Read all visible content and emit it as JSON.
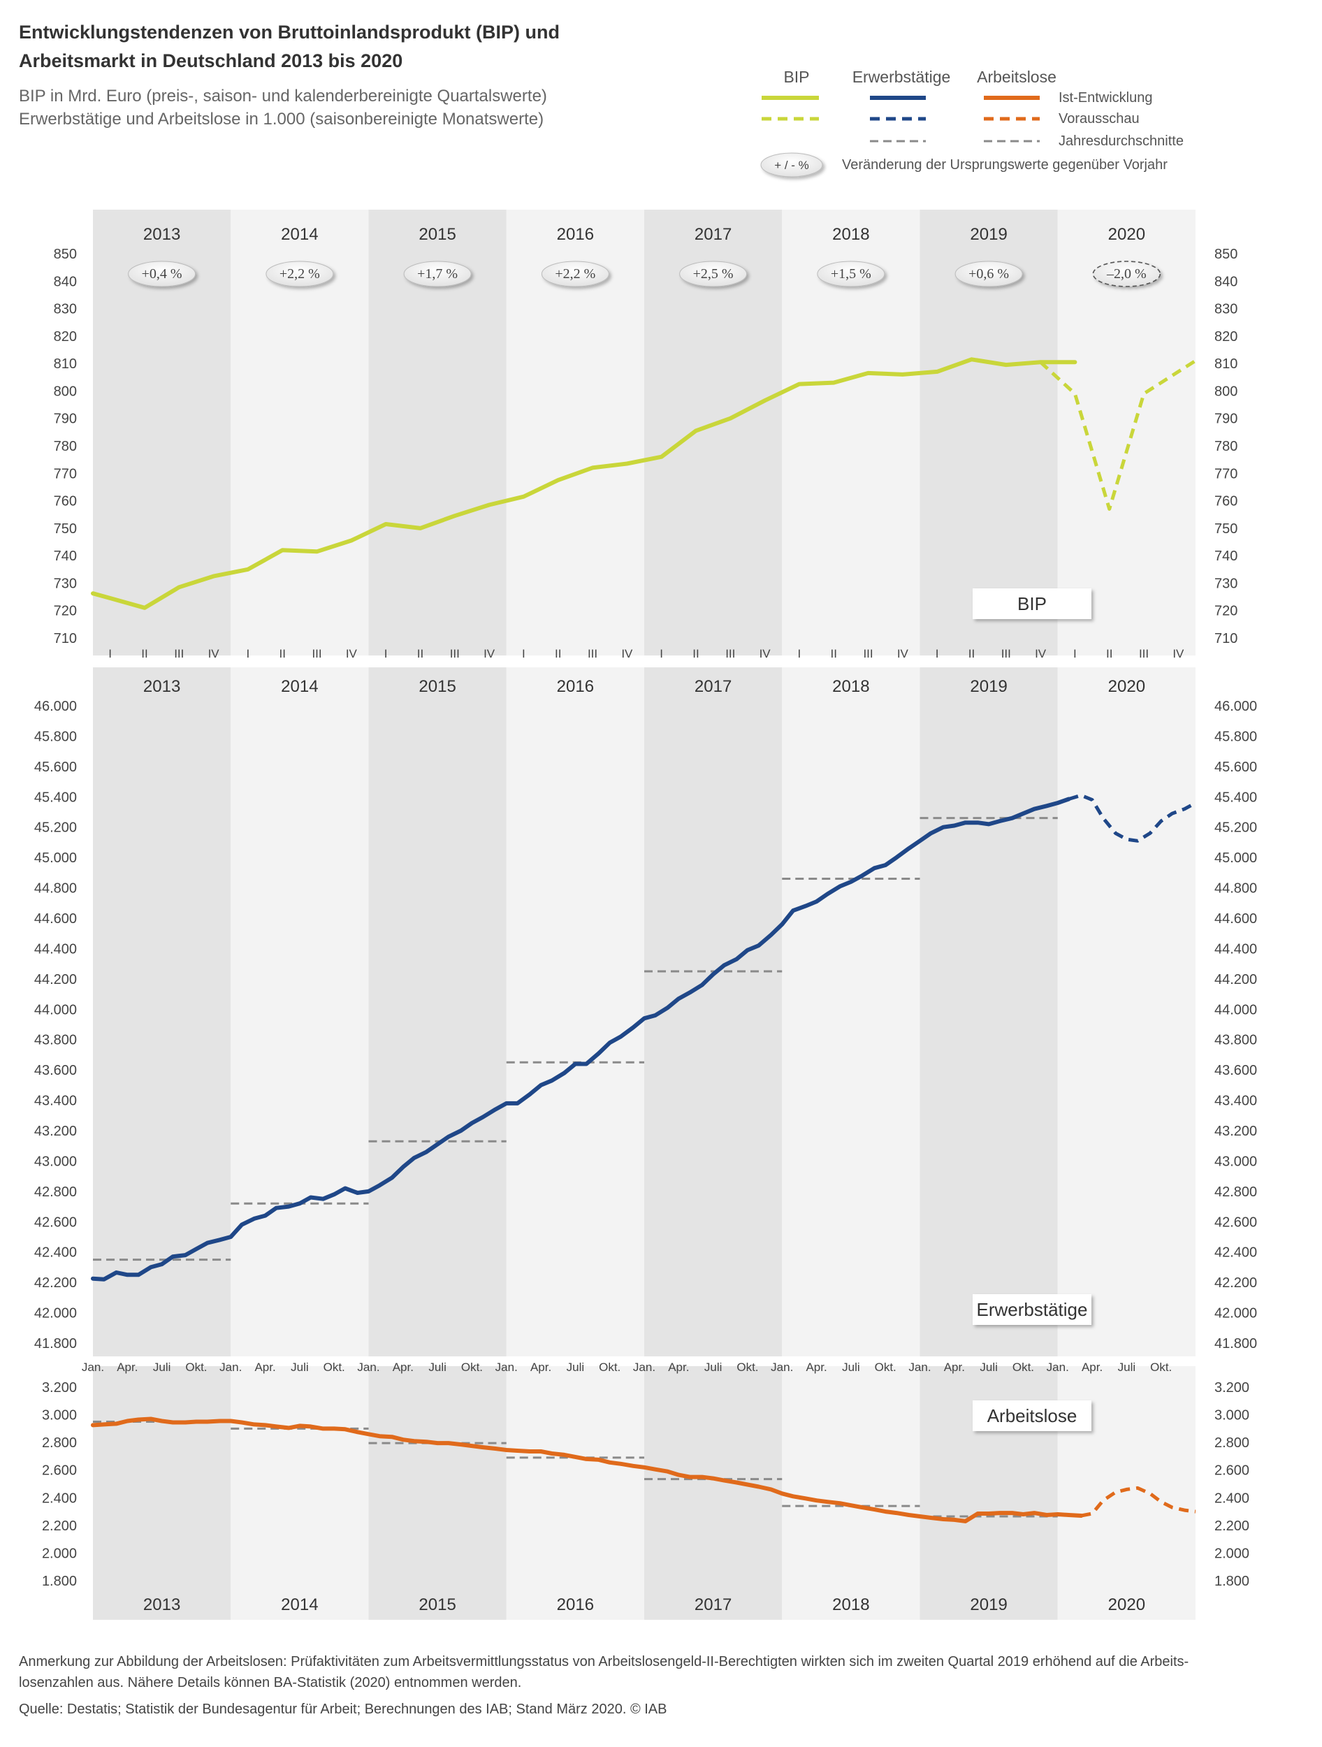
{
  "header": {
    "title_line1": "Entwicklungstendenzen von Bruttoinlandsprodukt (BIP) und",
    "title_line2": "Arbeitsmarkt in Deutschland 2013 bis 2020",
    "subtitle_line1": "BIP in Mrd. Euro (preis-, saison- und kalenderbereinigte Quartalswerte)",
    "subtitle_line2": "Erwerbstätige und Arbeitslose in 1.000 (saisonbereinigte Monatswerte)"
  },
  "legend": {
    "col_bip": "BIP",
    "col_erw": "Erwerbstätige",
    "col_arb": "Arbeitslose",
    "row_ist": "Ist-Entwicklung",
    "row_vor": "Vorausschau",
    "row_jd": "Jahresdurchschnitte",
    "pct_symbol": "+ / - %",
    "pct_text": "Veränderung der Ursprungswerte gegenüber Vorjahr"
  },
  "colors": {
    "bip": "#c9d63a",
    "erw": "#1f4788",
    "arb": "#e06a1b",
    "avg": "#8a8a8a",
    "band_dark": "#e4e4e4",
    "band_light": "#f3f3f3"
  },
  "years": [
    "2013",
    "2014",
    "2015",
    "2016",
    "2017",
    "2018",
    "2019",
    "2020"
  ],
  "quarters": [
    "I",
    "II",
    "III",
    "IV"
  ],
  "month_labels": [
    "Jan.",
    "Apr.",
    "Juli",
    "Okt."
  ],
  "chart_data": [
    {
      "type": "line",
      "label": "BIP",
      "unit": "Mrd. Euro",
      "ylim": [
        710,
        850
      ],
      "yticks": [
        "710",
        "720",
        "730",
        "740",
        "750",
        "760",
        "770",
        "780",
        "790",
        "800",
        "810",
        "820",
        "830",
        "840",
        "850"
      ],
      "x": [
        "2013 I",
        "2013 II",
        "2013 III",
        "2013 IV",
        "2014 I",
        "2014 II",
        "2014 III",
        "2014 IV",
        "2015 I",
        "2015 II",
        "2015 III",
        "2015 IV",
        "2016 I",
        "2016 II",
        "2016 III",
        "2016 IV",
        "2017 I",
        "2017 II",
        "2017 III",
        "2017 IV",
        "2018 I",
        "2018 II",
        "2018 III",
        "2018 IV",
        "2019 I",
        "2019 II",
        "2019 III",
        "2019 IV",
        "2020 I",
        "2020 II",
        "2020 III",
        "2020 IV"
      ],
      "actual": [
        724.5,
        721,
        728.5,
        732.5,
        735,
        742,
        741.5,
        745.5,
        751.5,
        750,
        754.5,
        758.5,
        761.5,
        767.5,
        772,
        773.5,
        776,
        785.5,
        790,
        796.5,
        802.5,
        803,
        806.5,
        806,
        807,
        811.5,
        809.5,
        810.5,
        810.5
      ],
      "forecast": [
        {
          "x": "2019 IV",
          "y": 810.5
        },
        {
          "x": "2020 I",
          "y": 799
        },
        {
          "x": "2020 II",
          "y": 757
        },
        {
          "x": "2020 III",
          "y": 799
        },
        {
          "x": "2020 IV",
          "y": 807
        }
      ],
      "yearly_change": [
        "+0,4 %",
        "+2,2 %",
        "+1,7 %",
        "+2,2 %",
        "+2,5 %",
        "+1,5 %",
        "+0,6 %",
        "–2,0 %"
      ],
      "box_label": "BIP"
    },
    {
      "type": "line",
      "label": "Erwerbstätige",
      "unit": "1.000",
      "ylim": [
        41800,
        46000
      ],
      "yticks": [
        "41.800",
        "42.000",
        "42.200",
        "42.400",
        "42.600",
        "42.800",
        "43.000",
        "43.200",
        "43.400",
        "43.600",
        "43.800",
        "44.000",
        "44.200",
        "44.400",
        "44.600",
        "44.800",
        "45.000",
        "45.200",
        "45.400",
        "45.600",
        "45.800",
        "46.000"
      ],
      "anchors_actual": [
        [
          2013.0,
          42225
        ],
        [
          2013.08,
          42220
        ],
        [
          2013.17,
          42265
        ],
        [
          2013.25,
          42250
        ],
        [
          2013.33,
          42250
        ],
        [
          2013.42,
          42300
        ],
        [
          2013.5,
          42320
        ],
        [
          2013.58,
          42370
        ],
        [
          2013.67,
          42380
        ],
        [
          2013.75,
          42420
        ],
        [
          2013.83,
          42460
        ],
        [
          2013.92,
          42480
        ],
        [
          2014.0,
          42500
        ],
        [
          2014.08,
          42580
        ],
        [
          2014.17,
          42620
        ],
        [
          2014.25,
          42640
        ],
        [
          2014.33,
          42690
        ],
        [
          2014.42,
          42700
        ],
        [
          2014.5,
          42720
        ],
        [
          2014.58,
          42760
        ],
        [
          2014.67,
          42750
        ],
        [
          2014.75,
          42780
        ],
        [
          2014.83,
          42820
        ],
        [
          2014.92,
          42790
        ],
        [
          2015.0,
          42800
        ],
        [
          2015.08,
          42840
        ],
        [
          2015.17,
          42890
        ],
        [
          2015.25,
          42960
        ],
        [
          2015.33,
          43020
        ],
        [
          2015.42,
          43060
        ],
        [
          2015.5,
          43110
        ],
        [
          2015.58,
          43160
        ],
        [
          2015.67,
          43200
        ],
        [
          2015.75,
          43250
        ],
        [
          2015.83,
          43290
        ],
        [
          2015.92,
          43340
        ],
        [
          2016.0,
          43380
        ],
        [
          2016.08,
          43380
        ],
        [
          2016.17,
          43440
        ],
        [
          2016.25,
          43500
        ],
        [
          2016.33,
          43530
        ],
        [
          2016.42,
          43580
        ],
        [
          2016.5,
          43640
        ],
        [
          2016.58,
          43640
        ],
        [
          2016.67,
          43710
        ],
        [
          2016.75,
          43780
        ],
        [
          2016.83,
          43820
        ],
        [
          2016.92,
          43880
        ],
        [
          2017.0,
          43940
        ],
        [
          2017.08,
          43960
        ],
        [
          2017.17,
          44010
        ],
        [
          2017.25,
          44070
        ],
        [
          2017.33,
          44110
        ],
        [
          2017.42,
          44160
        ],
        [
          2017.5,
          44230
        ],
        [
          2017.58,
          44290
        ],
        [
          2017.67,
          44330
        ],
        [
          2017.75,
          44390
        ],
        [
          2017.83,
          44420
        ],
        [
          2017.92,
          44490
        ],
        [
          2018.0,
          44560
        ],
        [
          2018.08,
          44650
        ],
        [
          2018.17,
          44680
        ],
        [
          2018.25,
          44710
        ],
        [
          2018.33,
          44760
        ],
        [
          2018.42,
          44810
        ],
        [
          2018.5,
          44840
        ],
        [
          2018.58,
          44880
        ],
        [
          2018.67,
          44930
        ],
        [
          2018.75,
          44950
        ],
        [
          2018.83,
          45000
        ],
        [
          2018.92,
          45060
        ],
        [
          2019.0,
          45110
        ],
        [
          2019.08,
          45160
        ],
        [
          2019.17,
          45200
        ],
        [
          2019.25,
          45210
        ],
        [
          2019.33,
          45230
        ],
        [
          2019.42,
          45230
        ],
        [
          2019.5,
          45220
        ],
        [
          2019.58,
          45240
        ],
        [
          2019.67,
          45260
        ],
        [
          2019.75,
          45290
        ],
        [
          2019.83,
          45320
        ],
        [
          2019.92,
          45340
        ],
        [
          2020.0,
          45360
        ],
        [
          2020.08,
          45385
        ]
      ],
      "anchors_forecast": [
        [
          2020.08,
          45385
        ],
        [
          2020.17,
          45410
        ],
        [
          2020.25,
          45380
        ],
        [
          2020.33,
          45260
        ],
        [
          2020.42,
          45160
        ],
        [
          2020.5,
          45120
        ],
        [
          2020.58,
          45110
        ],
        [
          2020.67,
          45160
        ],
        [
          2020.75,
          45240
        ],
        [
          2020.83,
          45290
        ],
        [
          2020.92,
          45320
        ],
        [
          3000,
          45360
        ]
      ],
      "yearly_avg": [
        42350,
        42720,
        43130,
        43650,
        44250,
        44860,
        45260
      ],
      "box_label": "Erwerbstätige"
    },
    {
      "type": "line",
      "label": "Arbeitslose",
      "unit": "1.000",
      "ylim": [
        1800,
        3200
      ],
      "yticks": [
        "1.800",
        "2.000",
        "2.200",
        "2.400",
        "2.600",
        "2.800",
        "3.000",
        "3.200"
      ],
      "anchors_actual": [
        [
          2013.0,
          2925
        ],
        [
          2013.08,
          2930
        ],
        [
          2013.17,
          2935
        ],
        [
          2013.25,
          2955
        ],
        [
          2013.33,
          2965
        ],
        [
          2013.42,
          2970
        ],
        [
          2013.5,
          2955
        ],
        [
          2013.58,
          2945
        ],
        [
          2013.67,
          2945
        ],
        [
          2013.75,
          2950
        ],
        [
          2013.83,
          2950
        ],
        [
          2013.92,
          2955
        ],
        [
          2014.0,
          2955
        ],
        [
          2014.08,
          2945
        ],
        [
          2014.17,
          2930
        ],
        [
          2014.25,
          2925
        ],
        [
          2014.33,
          2915
        ],
        [
          2014.42,
          2905
        ],
        [
          2014.5,
          2920
        ],
        [
          2014.58,
          2915
        ],
        [
          2014.67,
          2900
        ],
        [
          2014.75,
          2900
        ],
        [
          2014.83,
          2895
        ],
        [
          2014.92,
          2875
        ],
        [
          2015.0,
          2860
        ],
        [
          2015.08,
          2845
        ],
        [
          2015.17,
          2840
        ],
        [
          2015.25,
          2820
        ],
        [
          2015.33,
          2810
        ],
        [
          2015.42,
          2805
        ],
        [
          2015.5,
          2795
        ],
        [
          2015.58,
          2795
        ],
        [
          2015.67,
          2785
        ],
        [
          2015.75,
          2775
        ],
        [
          2015.83,
          2765
        ],
        [
          2015.92,
          2755
        ],
        [
          2016.0,
          2745
        ],
        [
          2016.08,
          2740
        ],
        [
          2016.17,
          2735
        ],
        [
          2016.25,
          2735
        ],
        [
          2016.33,
          2720
        ],
        [
          2016.42,
          2710
        ],
        [
          2016.5,
          2695
        ],
        [
          2016.58,
          2680
        ],
        [
          2016.67,
          2675
        ],
        [
          2016.75,
          2655
        ],
        [
          2016.83,
          2645
        ],
        [
          2016.92,
          2630
        ],
        [
          2017.0,
          2620
        ],
        [
          2017.08,
          2605
        ],
        [
          2017.17,
          2590
        ],
        [
          2017.25,
          2565
        ],
        [
          2017.33,
          2550
        ],
        [
          2017.42,
          2550
        ],
        [
          2017.5,
          2540
        ],
        [
          2017.58,
          2525
        ],
        [
          2017.67,
          2510
        ],
        [
          2017.75,
          2495
        ],
        [
          2017.83,
          2480
        ],
        [
          2017.92,
          2460
        ],
        [
          2018.0,
          2430
        ],
        [
          2018.08,
          2410
        ],
        [
          2018.17,
          2395
        ],
        [
          2018.25,
          2380
        ],
        [
          2018.33,
          2370
        ],
        [
          2018.42,
          2360
        ],
        [
          2018.5,
          2345
        ],
        [
          2018.58,
          2330
        ],
        [
          2018.67,
          2315
        ],
        [
          2018.75,
          2300
        ],
        [
          2018.83,
          2290
        ],
        [
          2018.92,
          2275
        ],
        [
          2019.0,
          2265
        ],
        [
          2019.08,
          2255
        ],
        [
          2019.17,
          2245
        ],
        [
          2019.25,
          2240
        ],
        [
          2019.33,
          2230
        ],
        [
          2019.42,
          2285
        ],
        [
          2019.5,
          2285
        ],
        [
          2019.58,
          2290
        ],
        [
          2019.67,
          2290
        ],
        [
          2019.75,
          2280
        ],
        [
          2019.83,
          2290
        ],
        [
          2019.92,
          2275
        ],
        [
          2020.0,
          2280
        ],
        [
          2020.08,
          2275
        ],
        [
          2020.17,
          2270
        ]
      ],
      "anchors_forecast": [
        [
          2020.17,
          2270
        ],
        [
          2020.25,
          2285
        ],
        [
          2020.33,
          2380
        ],
        [
          2020.42,
          2440
        ],
        [
          2020.5,
          2460
        ],
        [
          2020.58,
          2470
        ],
        [
          2020.67,
          2430
        ],
        [
          2020.75,
          2370
        ],
        [
          2020.83,
          2330
        ],
        [
          2020.92,
          2310
        ],
        [
          3000,
          2300
        ]
      ],
      "yearly_avg": [
        2950,
        2900,
        2795,
        2690,
        2535,
        2340,
        2265
      ],
      "box_label": "Arbeitslose"
    }
  ],
  "footer": {
    "note_line1": "Anmerkung zur Abbildung der Arbeitslosen: Prüfaktivitäten zum Arbeitsvermittlungsstatus von Arbeitslosengeld-II-Berechtigten wirkten sich im zweiten Quartal 2019 erhöhend auf die Arbeits-",
    "note_line2": "losenzahlen aus. Nähere Details können BA-Statistik (2020) entnommen werden.",
    "source": "Quelle: Destatis; Statistik der Bundesagentur für Arbeit; Berechnungen des IAB; Stand März 2020.  © IAB"
  }
}
